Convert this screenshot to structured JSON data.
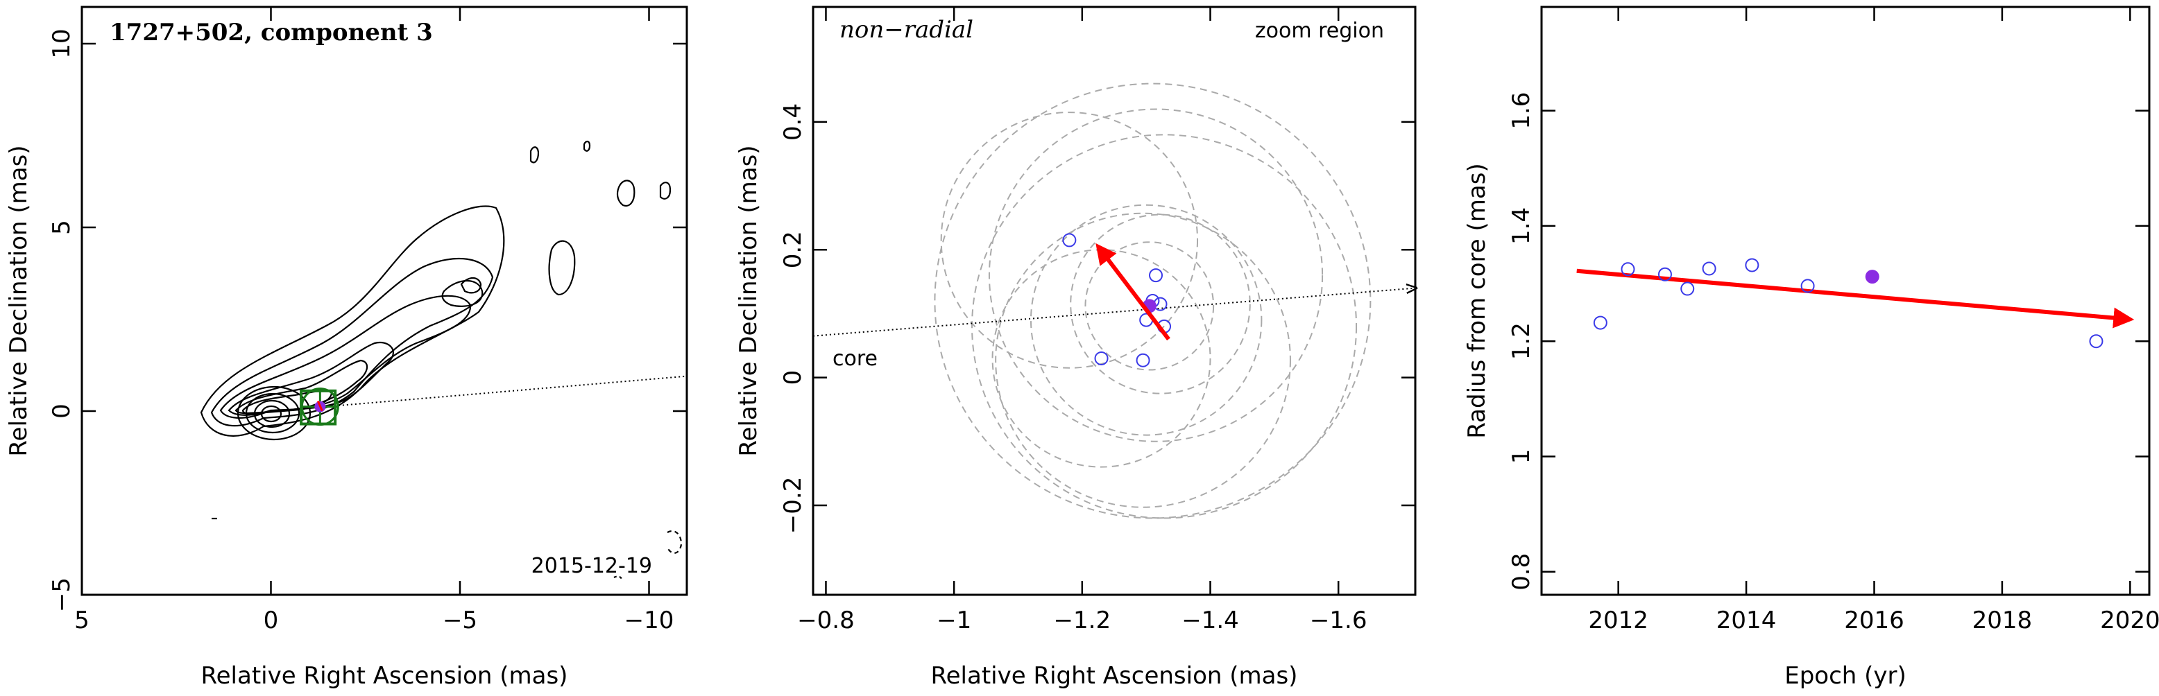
{
  "chart_data": [
    {
      "type": "contour",
      "title": "1727+502, component 3",
      "xlabel": "Relative Right Ascension (mas)",
      "ylabel": "Relative Declination (mas)",
      "xlim": [
        5,
        -11
      ],
      "ylim": [
        -5,
        11
      ],
      "x_ticks": [
        5,
        0,
        -5,
        -10
      ],
      "x_tick_labels": [
        "5",
        "0",
        "−5",
        "−10"
      ],
      "y_ticks": [
        -5,
        0,
        5,
        10
      ],
      "y_tick_labels": [
        "−5",
        "0",
        "5",
        "10"
      ],
      "date_label": "2015-12-19",
      "component_position": [
        -1.3,
        0.12
      ],
      "zoom_box": {
        "x": [
          -0.8,
          -1.7
        ],
        "y": [
          -0.35,
          0.55
        ]
      },
      "direction_line": {
        "from": [
          -0.8,
          0.065
        ],
        "to": [
          -11,
          0.95
        ]
      },
      "colors": {
        "contour": "#000000",
        "box": "#1a7a1a",
        "point": "#8a2be2",
        "arrow": "#ff0000"
      }
    },
    {
      "type": "scatter",
      "title": "non−radial",
      "corner_label": "zoom region",
      "core_label": "core",
      "xlabel": "Relative Right Ascension (mas)",
      "ylabel": "Relative Declination (mas)",
      "xlim": [
        -0.78,
        -1.72
      ],
      "ylim": [
        -0.34,
        0.58
      ],
      "x_ticks": [
        -0.8,
        -1,
        -1.2,
        -1.4,
        -1.6
      ],
      "x_tick_labels": [
        "−0.8",
        "−1",
        "−1.2",
        "−1.4",
        "−1.6"
      ],
      "y_ticks": [
        -0.2,
        0,
        0.2,
        0.4
      ],
      "y_tick_labels": [
        "−0.2",
        "0",
        "0.2",
        "0.4"
      ],
      "open_points": [
        {
          "x": -1.18,
          "y": 0.215
        },
        {
          "x": -1.315,
          "y": 0.16
        },
        {
          "x": -1.31,
          "y": 0.12
        },
        {
          "x": -1.322,
          "y": 0.115
        },
        {
          "x": -1.3,
          "y": 0.09
        },
        {
          "x": -1.328,
          "y": 0.08
        },
        {
          "x": -1.23,
          "y": 0.03
        },
        {
          "x": -1.295,
          "y": 0.027
        }
      ],
      "filled_point": {
        "x": -1.305,
        "y": 0.112
      },
      "circles": [
        {
          "x": -1.18,
          "y": 0.215,
          "r": 0.2
        },
        {
          "x": -1.315,
          "y": 0.16,
          "r": 0.26
        },
        {
          "x": -1.31,
          "y": 0.12,
          "r": 0.34
        },
        {
          "x": -1.322,
          "y": 0.115,
          "r": 0.14
        },
        {
          "x": -1.3,
          "y": 0.09,
          "r": 0.18
        },
        {
          "x": -1.328,
          "y": 0.08,
          "r": 0.3
        },
        {
          "x": -1.23,
          "y": 0.03,
          "r": 0.17
        },
        {
          "x": -1.295,
          "y": 0.027,
          "r": 0.23
        },
        {
          "x": -1.305,
          "y": 0.112,
          "r": 0.1
        }
      ],
      "arrow": {
        "from": [
          -1.335,
          0.06
        ],
        "to": [
          -1.225,
          0.205
        ]
      },
      "direction_line": {
        "from": [
          -1.72,
          0.14
        ],
        "to": [
          -0.78,
          0.065
        ]
      },
      "colors": {
        "points": "#3a3ae8",
        "filled": "#8a2be2",
        "circles": "#aaaaaa",
        "arrow": "#ff0000"
      }
    },
    {
      "type": "scatter",
      "xlabel": "Epoch (yr)",
      "ylabel": "Radius from core (mas)",
      "xlim": [
        2010.8,
        2020.3
      ],
      "ylim": [
        0.76,
        1.78
      ],
      "x_ticks": [
        2012,
        2014,
        2016,
        2018,
        2020
      ],
      "x_tick_labels": [
        "2012",
        "2014",
        "2016",
        "2018",
        "2020"
      ],
      "y_ticks": [
        0.8,
        1,
        1.2,
        1.4,
        1.6
      ],
      "y_tick_labels": [
        "0.8",
        "1",
        "1.2",
        "1.4",
        "1.6"
      ],
      "open_points": [
        {
          "x": 2011.72,
          "y": 1.232
        },
        {
          "x": 2012.15,
          "y": 1.325
        },
        {
          "x": 2012.73,
          "y": 1.316
        },
        {
          "x": 2013.08,
          "y": 1.291
        },
        {
          "x": 2013.42,
          "y": 1.326
        },
        {
          "x": 2014.09,
          "y": 1.332
        },
        {
          "x": 2014.96,
          "y": 1.296
        },
        {
          "x": 2019.47,
          "y": 1.2
        }
      ],
      "filled_point": {
        "x": 2015.97,
        "y": 1.312
      },
      "fit_arrow": {
        "from": [
          2011.35,
          1.322
        ],
        "to": [
          2020.0,
          1.238
        ]
      },
      "colors": {
        "points": "#3a3ae8",
        "filled": "#8a2be2",
        "arrow": "#ff0000"
      }
    }
  ]
}
